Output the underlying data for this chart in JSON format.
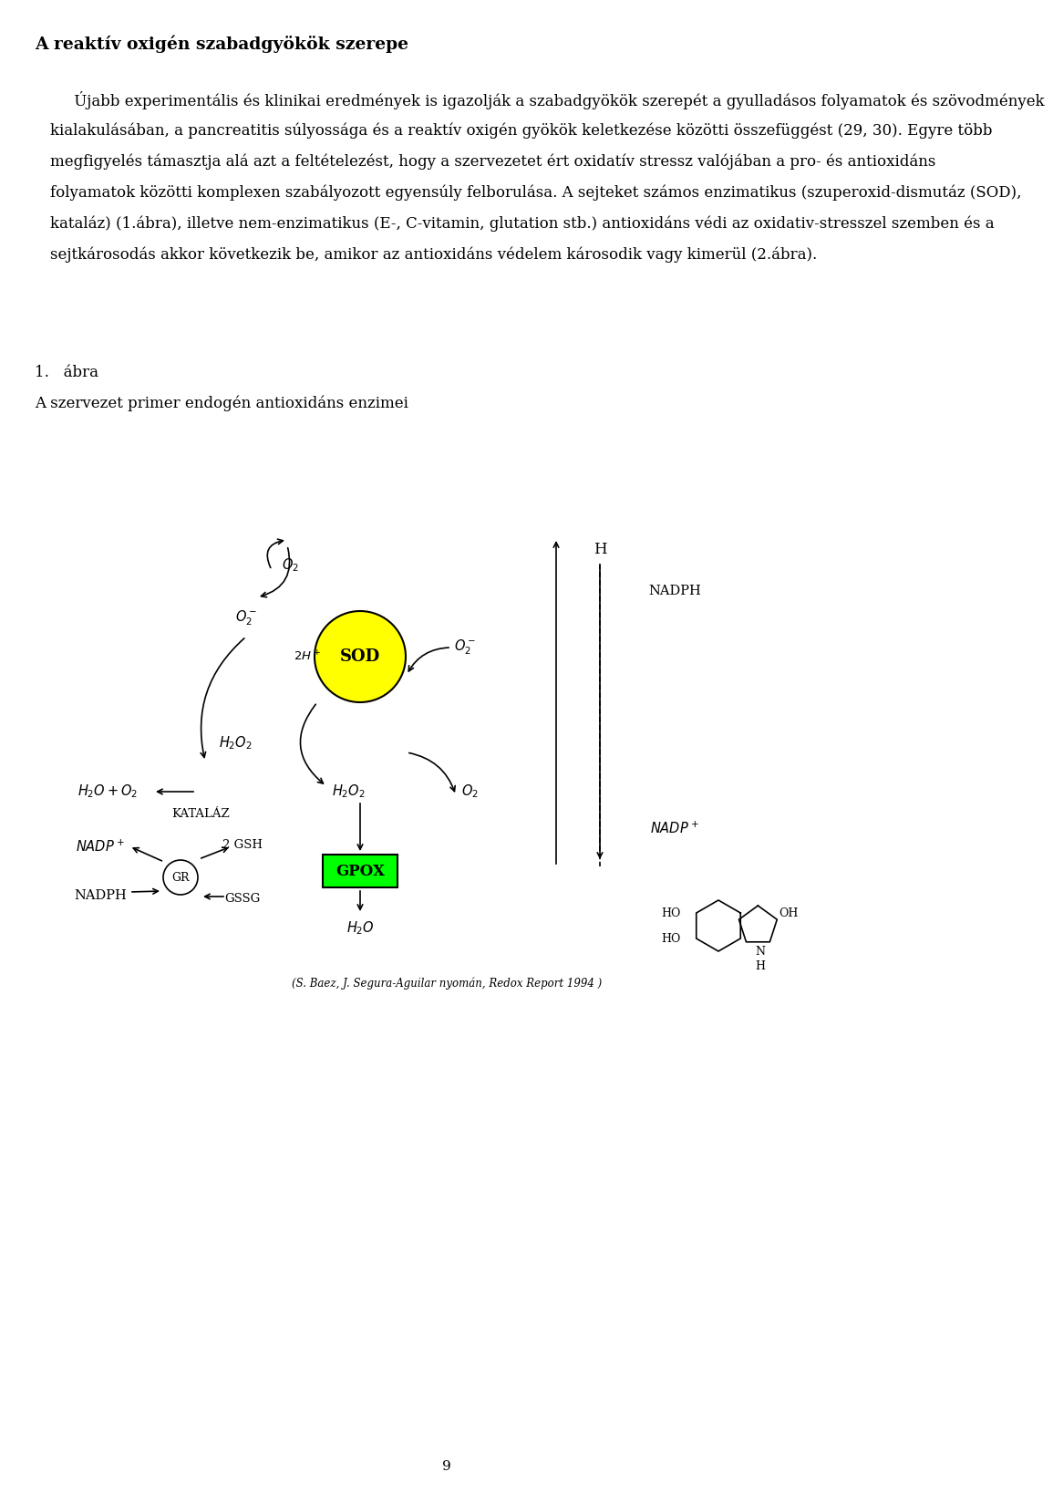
{
  "title": "A reaktív oxigén szabadgyökök szerepe",
  "body_lines": [
    "     Újabb experimentális és klinikai eredmények is igazolják a szabadgyökök szerepét a gyulladásos folyamatok és szövodmények",
    "kialakulásában, a pancreatitis súlyossága és a reaktív oxigén gyökök keletkezése közötti összefüggést (29, 30). Egyre több",
    "megfigyelés támasztja alá azt a feltételezést, hogy a szervezetet ért oxidatív stressz valójában a pro- és antioxidáns",
    "folyamatok közötti komplexen szabályozott egyensúly felborulása. A sejteket számos enzimatikus (szuperoxid-dismutáz (SOD),",
    "kataláz) (1.ábra), illetve nem-enzimatikus (E-, C-vitamin, glutation stb.) antioxidáns védi az oxidativ-stresszel szemben és a",
    "sejtkárosodás akkor következik be, amikor az antioxidáns védelem károsodik vagy kimerül (2.ábra)."
  ],
  "fig_label": "1.   ábra",
  "fig_caption": "A szervezet primer endogén antioxidáns enzimei",
  "fig_source": "(S. Baez, J. Segura-Aguilar nyomán, Redox Report 1994 )",
  "page_number": "9",
  "bg_color": "#ffffff",
  "text_color": "#000000",
  "title_fontsize": 13.5,
  "body_fontsize": 12.0,
  "caption_fontsize": 12.0
}
